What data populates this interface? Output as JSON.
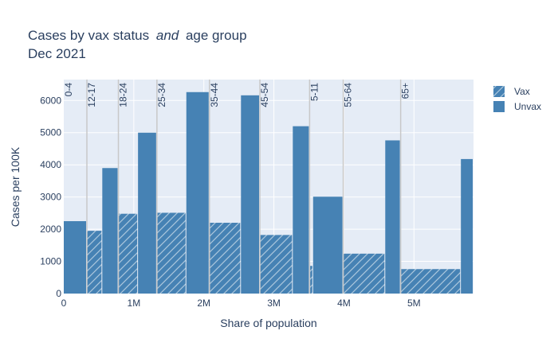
{
  "chart_data": {
    "type": "bar",
    "title": "Cases by vax status",
    "title_emphasis": "and",
    "title_suffix": "age group",
    "subtitle": "Dec 2021",
    "xlabel": "Share of population",
    "ylabel": "Cases per 100K",
    "xlim": [
      0,
      5.85
    ],
    "ylim": [
      0,
      6650
    ],
    "x_unit": "M",
    "x_ticks": [
      {
        "value": 0,
        "label": "0"
      },
      {
        "value": 1,
        "label": "1M"
      },
      {
        "value": 2,
        "label": "2M"
      },
      {
        "value": 3,
        "label": "3M"
      },
      {
        "value": 4,
        "label": "4M"
      },
      {
        "value": 5,
        "label": "5M"
      }
    ],
    "y_ticks": [
      {
        "value": 0,
        "label": "0"
      },
      {
        "value": 1000,
        "label": "1000"
      },
      {
        "value": 2000,
        "label": "2000"
      },
      {
        "value": 3000,
        "label": "3000"
      },
      {
        "value": 4000,
        "label": "4000"
      },
      {
        "value": 5000,
        "label": "5000"
      },
      {
        "value": 6000,
        "label": "6000"
      }
    ],
    "grid": true,
    "legend_position": "top-right",
    "bar_color": "#4682b4",
    "plot_background": "#e5ecf6",
    "separator_color": "#c8c8c8",
    "series": [
      {
        "name": "Vax",
        "pattern": "hatched"
      },
      {
        "name": "Unvax",
        "pattern": "solid"
      }
    ],
    "groups": [
      {
        "label": "0-4",
        "start": 0.0,
        "vax_width": 0.0,
        "vax_value": 0,
        "unvax_width": 0.33,
        "unvax_value": 2250
      },
      {
        "label": "12-17",
        "start": 0.33,
        "vax_width": 0.22,
        "vax_value": 1950,
        "unvax_width": 0.23,
        "unvax_value": 3900
      },
      {
        "label": "18-24",
        "start": 0.78,
        "vax_width": 0.28,
        "vax_value": 2480,
        "unvax_width": 0.27,
        "unvax_value": 5000
      },
      {
        "label": "25-34",
        "start": 1.33,
        "vax_width": 0.42,
        "vax_value": 2510,
        "unvax_width": 0.33,
        "unvax_value": 6260
      },
      {
        "label": "35-44",
        "start": 2.08,
        "vax_width": 0.45,
        "vax_value": 2200,
        "unvax_width": 0.27,
        "unvax_value": 6160
      },
      {
        "label": "45-54",
        "start": 2.8,
        "vax_width": 0.47,
        "vax_value": 1820,
        "unvax_width": 0.24,
        "unvax_value": 5200
      },
      {
        "label": "5-11",
        "start": 3.51,
        "vax_width": 0.05,
        "vax_value": 860,
        "unvax_width": 0.43,
        "unvax_value": 3010
      },
      {
        "label": "55-64",
        "start": 3.99,
        "vax_width": 0.6,
        "vax_value": 1240,
        "unvax_width": 0.22,
        "unvax_value": 4760
      },
      {
        "label": "65+",
        "start": 4.81,
        "vax_width": 0.86,
        "vax_value": 760,
        "unvax_width": 0.18,
        "unvax_value": 4180
      }
    ]
  }
}
